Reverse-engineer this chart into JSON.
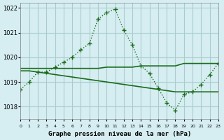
{
  "title": "Graphe pression niveau de la mer (hPa)",
  "background_color": "#d6eef2",
  "grid_color": "#aacccc",
  "line_color": "#1a6b1a",
  "xlim": [
    0,
    23
  ],
  "ylim": [
    1017.5,
    1022.2
  ],
  "yticks": [
    1018,
    1019,
    1020,
    1021,
    1022
  ],
  "xticks": [
    0,
    1,
    2,
    3,
    4,
    5,
    6,
    7,
    8,
    9,
    10,
    11,
    12,
    13,
    14,
    15,
    16,
    17,
    18,
    19,
    20,
    21,
    22,
    23
  ],
  "series1": {
    "x": [
      0,
      1,
      2,
      3,
      4,
      5,
      6,
      7,
      8,
      9,
      10,
      11,
      12,
      13,
      14,
      15,
      16,
      17,
      18,
      19,
      20,
      21,
      22,
      23
    ],
    "y": [
      1018.7,
      1019.0,
      1019.4,
      1019.4,
      1019.6,
      1019.8,
      1020.0,
      1020.3,
      1020.55,
      1021.55,
      1021.8,
      1021.95,
      1021.1,
      1020.5,
      1019.65,
      1019.35,
      1018.75,
      1018.15,
      1017.85,
      1018.5,
      1018.6,
      1018.9,
      1019.3,
      1019.75
    ],
    "style": "dotted",
    "marker": "+"
  },
  "series2": {
    "x": [
      0,
      1,
      2,
      3,
      4,
      5,
      6,
      7,
      8,
      9,
      10,
      11,
      12,
      13,
      14,
      15,
      16,
      17,
      18,
      19,
      20,
      21,
      22,
      23
    ],
    "y": [
      1019.55,
      1019.55,
      1019.55,
      1019.55,
      1019.55,
      1019.55,
      1019.55,
      1019.55,
      1019.55,
      1019.55,
      1019.6,
      1019.6,
      1019.6,
      1019.6,
      1019.65,
      1019.65,
      1019.65,
      1019.65,
      1019.65,
      1019.75,
      1019.75,
      1019.75,
      1019.75,
      1019.75
    ],
    "style": "solid",
    "marker": null
  },
  "series3": {
    "x": [
      0,
      1,
      2,
      3,
      4,
      5,
      6,
      7,
      8,
      9,
      10,
      11,
      12,
      13,
      14,
      15,
      16,
      17,
      18,
      19,
      20,
      21,
      22,
      23
    ],
    "y": [
      1019.45,
      1019.45,
      1019.4,
      1019.35,
      1019.3,
      1019.25,
      1019.2,
      1019.15,
      1019.1,
      1019.05,
      1019.0,
      1018.95,
      1018.9,
      1018.85,
      1018.8,
      1018.75,
      1018.7,
      1018.65,
      1018.6,
      1018.6,
      1018.6,
      1018.6,
      1018.6,
      1018.6
    ],
    "style": "solid",
    "marker": null
  }
}
